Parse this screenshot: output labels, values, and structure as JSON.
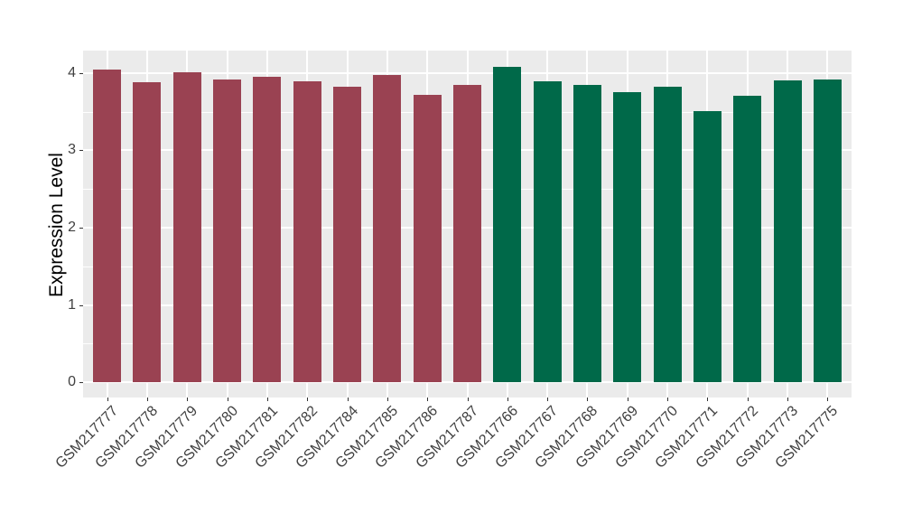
{
  "chart_data": {
    "type": "bar",
    "title": "",
    "xlabel": "",
    "ylabel": "Expression Level",
    "ylim": [
      0,
      4.28
    ],
    "yticks": [
      0,
      1,
      2,
      3,
      4
    ],
    "yticks_minor": [
      0.5,
      1.5,
      2.5,
      3.5
    ],
    "grid": "on",
    "legend": "none",
    "panel_background": "#EBEBEB",
    "grid_color": "#FFFFFF",
    "categories": [
      "GSM217777",
      "GSM217778",
      "GSM217779",
      "GSM217780",
      "GSM217781",
      "GSM217782",
      "GSM217784",
      "GSM217785",
      "GSM217786",
      "GSM217787",
      "GSM217766",
      "GSM217767",
      "GSM217768",
      "GSM217769",
      "GSM217770",
      "GSM217771",
      "GSM217772",
      "GSM217773",
      "GSM217775"
    ],
    "values": [
      4.04,
      3.88,
      4.01,
      3.91,
      3.95,
      3.89,
      3.82,
      3.97,
      3.72,
      3.85,
      4.08,
      3.89,
      3.85,
      3.75,
      3.82,
      3.51,
      3.7,
      3.9,
      3.91
    ],
    "bar_groups": [
      "group1",
      "group1",
      "group1",
      "group1",
      "group1",
      "group1",
      "group1",
      "group1",
      "group1",
      "group1",
      "group2",
      "group2",
      "group2",
      "group2",
      "group2",
      "group2",
      "group2",
      "group2",
      "group2"
    ],
    "group_colors": {
      "group1": "#9A4252",
      "group2": "#006949"
    }
  }
}
